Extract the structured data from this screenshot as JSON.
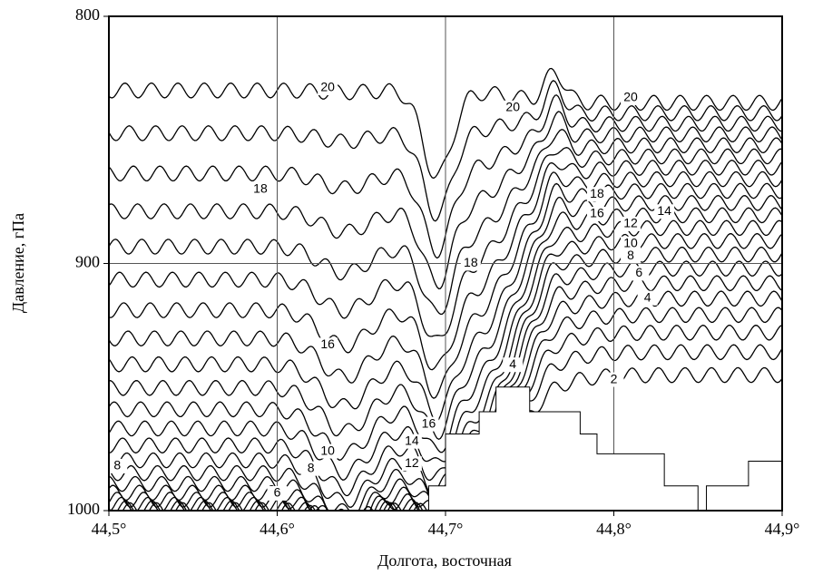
{
  "chart_data": {
    "type": "contour",
    "xlabel": "Долгота, восточная",
    "ylabel": "Давление, гПа",
    "xlim": [
      44.5,
      44.9
    ],
    "ylim": [
      1000,
      800
    ],
    "xticks": [
      {
        "value": 44.5,
        "label": "44,5°"
      },
      {
        "value": 44.6,
        "label": "44,6°"
      },
      {
        "value": 44.7,
        "label": "44,7°"
      },
      {
        "value": 44.8,
        "label": "44,8°"
      },
      {
        "value": 44.9,
        "label": "44,9°"
      }
    ],
    "yticks": [
      800,
      900,
      1000
    ],
    "grid": true,
    "color": "#000000",
    "levels": [
      1,
      2,
      3,
      4,
      5,
      6,
      7,
      8,
      9,
      10,
      11,
      12,
      13,
      14,
      15,
      16,
      17,
      18,
      19,
      20,
      21
    ],
    "terrain": {
      "x": [
        44.69,
        44.69,
        44.7,
        44.7,
        44.72,
        44.72,
        44.73,
        44.73,
        44.75,
        44.75,
        44.78,
        44.78,
        44.79,
        44.79,
        44.83,
        44.83,
        44.85,
        44.85,
        44.855,
        44.855,
        44.88,
        44.88,
        44.9,
        44.9
      ],
      "y": [
        1000,
        990,
        990,
        969,
        969,
        960,
        960,
        950,
        950,
        960,
        960,
        969,
        969,
        977,
        977,
        990,
        990,
        1000,
        1000,
        990,
        990,
        980,
        980,
        1000
      ]
    },
    "contour_labels": [
      {
        "level": 20,
        "x": 44.63,
        "y": 829
      },
      {
        "level": 20,
        "x": 44.74,
        "y": 837
      },
      {
        "level": 20,
        "x": 44.81,
        "y": 833
      },
      {
        "level": 18,
        "x": 44.59,
        "y": 870
      },
      {
        "level": 18,
        "x": 44.79,
        "y": 872
      },
      {
        "level": 16,
        "x": 44.79,
        "y": 880
      },
      {
        "level": 14,
        "x": 44.83,
        "y": 879
      },
      {
        "level": 12,
        "x": 44.81,
        "y": 884
      },
      {
        "level": 10,
        "x": 44.81,
        "y": 892
      },
      {
        "level": 8,
        "x": 44.81,
        "y": 897
      },
      {
        "level": 6,
        "x": 44.815,
        "y": 904
      },
      {
        "level": 4,
        "x": 44.82,
        "y": 914
      },
      {
        "level": 2,
        "x": 44.8,
        "y": 947
      },
      {
        "level": 18,
        "x": 44.715,
        "y": 900
      },
      {
        "level": 16,
        "x": 44.63,
        "y": 933
      },
      {
        "level": 4,
        "x": 44.74,
        "y": 941
      },
      {
        "level": 16,
        "x": 44.69,
        "y": 965
      },
      {
        "level": 14,
        "x": 44.68,
        "y": 972
      },
      {
        "level": 12,
        "x": 44.68,
        "y": 981
      },
      {
        "level": 10,
        "x": 44.63,
        "y": 976
      },
      {
        "level": 8,
        "x": 44.62,
        "y": 983
      },
      {
        "level": 8,
        "x": 44.505,
        "y": 982
      },
      {
        "level": 6,
        "x": 44.6,
        "y": 993
      }
    ]
  }
}
